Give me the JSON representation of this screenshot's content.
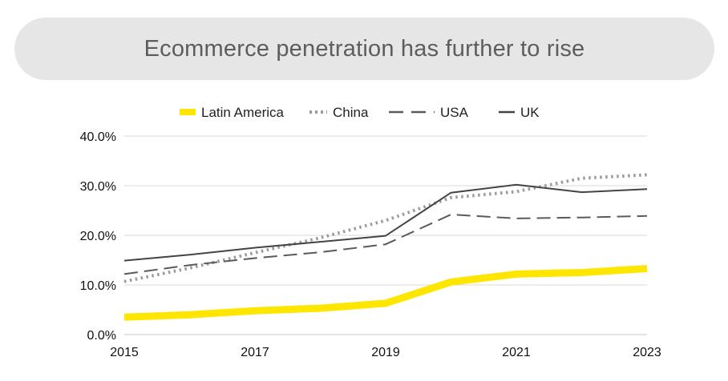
{
  "banner": {
    "title": "Ecommerce penetration has further to rise"
  },
  "chart_data": {
    "type": "line",
    "title": "Ecommerce penetration has further to rise",
    "xlabel": "",
    "ylabel": "",
    "x": [
      2015,
      2016,
      2017,
      2018,
      2019,
      2020,
      2021,
      2022,
      2023
    ],
    "x_tick_labels": [
      "2015",
      "2017",
      "2019",
      "2021",
      "2023"
    ],
    "x_ticks": [
      2015,
      2017,
      2019,
      2021,
      2023
    ],
    "xlim": [
      2015,
      2023
    ],
    "y_tick_labels": [
      "0.0%",
      "10.0%",
      "20.0%",
      "30.0%",
      "40.0%"
    ],
    "y_ticks": [
      0,
      10,
      20,
      30,
      40
    ],
    "ylim": [
      0,
      40
    ],
    "y_unit": "%",
    "grid": "horizontal",
    "legend_position": "top",
    "series": [
      {
        "name": "Latin America",
        "color": "#ffe600",
        "style": "thick-solid",
        "values": [
          3.5,
          4.0,
          4.8,
          5.3,
          6.3,
          10.6,
          12.2,
          12.5,
          13.3
        ]
      },
      {
        "name": "China",
        "color": "#9b9b9b",
        "style": "dotted",
        "values": [
          10.7,
          13.4,
          16.5,
          19.5,
          23.0,
          27.6,
          28.8,
          31.5,
          32.2
        ]
      },
      {
        "name": "USA",
        "color": "#5a5a5a",
        "style": "dashed",
        "values": [
          12.2,
          14.0,
          15.4,
          16.6,
          18.2,
          24.2,
          23.4,
          23.6,
          23.9
        ]
      },
      {
        "name": "UK",
        "color": "#444444",
        "style": "solid",
        "values": [
          14.9,
          16.1,
          17.5,
          18.7,
          19.9,
          28.6,
          30.2,
          28.7,
          29.3
        ]
      }
    ]
  }
}
